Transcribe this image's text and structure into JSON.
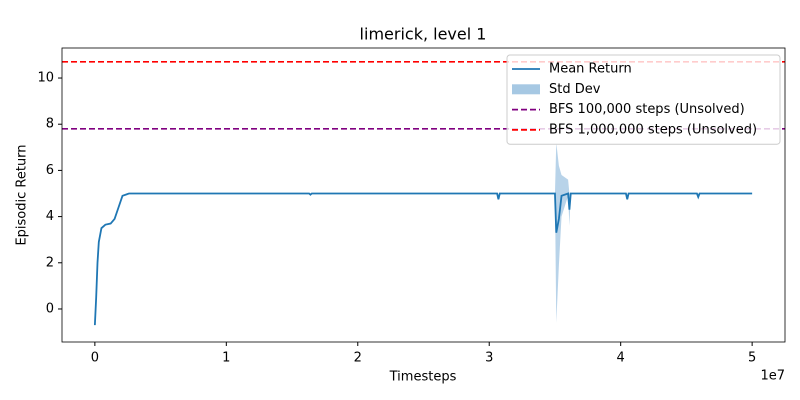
{
  "chart_data": {
    "type": "line",
    "title": "limerick, level 1",
    "x_label": "Timesteps",
    "y_label": "Episodic Return",
    "x_offset_label": "1e7",
    "x": [
      0,
      100000,
      200000,
      300000,
      500000,
      800000,
      1200000,
      1500000,
      1800000,
      2100000,
      2600000,
      16300000,
      16400000,
      16500000,
      30600000,
      30700000,
      30800000,
      35000000,
      35100000,
      35300000,
      35500000,
      36000000,
      36100000,
      36200000,
      40400000,
      40500000,
      40600000,
      45800000,
      45900000,
      46000000,
      50000000
    ],
    "series": [
      {
        "name": "Mean Return",
        "color": "#1f77b4",
        "values": [
          -0.7,
          0.5,
          2.0,
          2.9,
          3.5,
          3.65,
          3.7,
          3.9,
          4.4,
          4.9,
          5.0,
          5.0,
          4.95,
          5.0,
          5.0,
          4.75,
          5.0,
          5.0,
          3.3,
          3.9,
          4.9,
          5.0,
          4.3,
          5.0,
          5.0,
          4.75,
          5.0,
          5.0,
          4.85,
          5.0,
          5.0
        ]
      }
    ],
    "band": {
      "name": "Std Dev",
      "color": "#a6c8e3",
      "lower": [
        -0.7,
        0.5,
        2.0,
        2.9,
        3.5,
        3.65,
        3.7,
        3.9,
        4.4,
        4.9,
        5.0,
        5.0,
        4.95,
        5.0,
        5.0,
        4.7,
        5.0,
        5.0,
        -0.6,
        1.9,
        4.0,
        4.9,
        3.6,
        5.0,
        5.0,
        4.7,
        5.0,
        5.0,
        4.8,
        5.0,
        5.0
      ],
      "upper": [
        -0.7,
        0.5,
        2.0,
        2.9,
        3.5,
        3.65,
        3.7,
        3.9,
        4.4,
        4.9,
        5.0,
        5.0,
        4.95,
        5.0,
        5.0,
        4.8,
        5.0,
        5.0,
        7.2,
        6.2,
        5.8,
        5.6,
        5.0,
        5.0,
        5.0,
        4.8,
        5.0,
        5.0,
        4.9,
        5.0,
        5.0
      ]
    },
    "hlines": [
      {
        "name": "BFS 100,000 steps (Unsolved)",
        "value": 7.8,
        "color": "#800080"
      },
      {
        "name": "BFS 1,000,000 steps (Unsolved)",
        "value": 10.7,
        "color": "#ff0000"
      }
    ],
    "xlim": [
      -2500000,
      52500000
    ],
    "ylim": [
      -1.43,
      11.3
    ],
    "xticks": [
      0,
      {
        "value": 10000000,
        "label": "1"
      },
      {
        "value": 20000000,
        "label": "2"
      },
      {
        "value": 30000000,
        "label": "3"
      },
      {
        "value": 40000000,
        "label": "4"
      },
      {
        "value": 50000000,
        "label": "5"
      }
    ],
    "yticks": [
      0,
      2,
      4,
      6,
      8,
      10
    ],
    "legend": "upper right",
    "grid": false
  }
}
